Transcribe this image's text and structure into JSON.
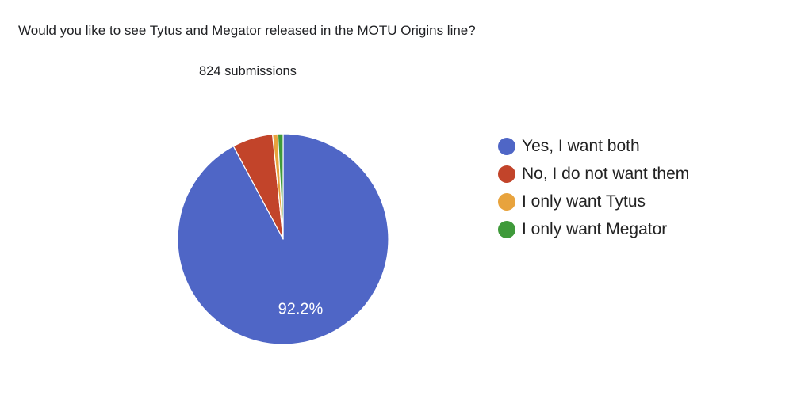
{
  "question": "Would you like to see Tytus and Megator released in the MOTU Origins line?",
  "submissions_text": "824 submissions",
  "chart_data": {
    "type": "pie",
    "slices": [
      {
        "label": "Yes, I want both",
        "value": 92.2,
        "color": "#4f66c6",
        "data_label": "92.2%"
      },
      {
        "label": "No, I do not want them",
        "value": 6.2,
        "color": "#c2442a",
        "data_label": ""
      },
      {
        "label": "I only want Tytus",
        "value": 0.8,
        "color": "#e8a33d",
        "data_label": ""
      },
      {
        "label": "I only want Megator",
        "value": 0.8,
        "color": "#3f9a3a",
        "data_label": ""
      }
    ],
    "legend_position": "right"
  }
}
